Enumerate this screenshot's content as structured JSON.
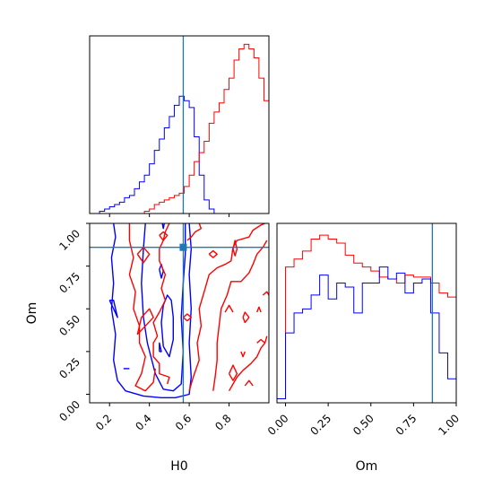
{
  "colors": {
    "series_a": "#ff0000",
    "series_b": "#0000ff",
    "truth": "#1f77b4",
    "axes": "#000000",
    "background": "#ffffff"
  },
  "chart_data": [
    {
      "panel": "H0 marginal histogram",
      "type": "step-histogram",
      "x_range": [
        0.1,
        1.0
      ],
      "bin_width": 0.025,
      "grid": false,
      "y_ticks_shown": false,
      "truth_x": 0.57,
      "series": [
        {
          "color_key": "series_b",
          "x_start": 0.1,
          "counts": [
            0,
            0,
            1,
            2,
            3,
            4,
            5,
            7,
            8,
            11,
            14,
            17,
            22,
            28,
            33,
            38,
            43,
            48,
            52,
            50,
            47,
            34,
            17,
            6,
            2,
            0,
            0,
            0,
            0,
            0,
            0,
            0,
            0,
            0,
            0,
            0
          ]
        },
        {
          "color_key": "series_a",
          "x_start": 0.1,
          "counts": [
            0,
            0,
            0,
            0,
            0,
            0,
            0,
            0,
            0,
            0,
            0,
            1,
            2,
            4,
            5,
            6,
            7,
            8,
            9,
            12,
            17,
            23,
            27,
            32,
            40,
            45,
            49,
            55,
            60,
            68,
            73,
            75,
            73,
            69,
            60,
            50
          ]
        }
      ]
    },
    {
      "panel": "H0 vs Om contour",
      "type": "contour",
      "xlabel": "H0",
      "ylabel": "Om",
      "x_range": [
        0.1,
        1.0
      ],
      "y_range": [
        -0.05,
        1.0
      ],
      "x_ticks": [
        "0.2",
        "0.4",
        "0.6",
        "0.8"
      ],
      "y_ticks": [
        "0.00",
        "0.25",
        "0.50",
        "0.75",
        "1.00"
      ],
      "x_tick_values": [
        0.2,
        0.4,
        0.6,
        0.8
      ],
      "y_tick_values": [
        0.0,
        0.25,
        0.5,
        0.75,
        1.0
      ],
      "truth": {
        "x": 0.57,
        "y": 0.86
      },
      "series": [
        {
          "color_key": "series_b",
          "contours": [
            [
              [
                0.22,
                1.0
              ],
              [
                0.23,
                0.92
              ],
              [
                0.21,
                0.8
              ],
              [
                0.22,
                0.65
              ],
              [
                0.21,
                0.5
              ],
              [
                0.23,
                0.35
              ],
              [
                0.22,
                0.2
              ],
              [
                0.24,
                0.08
              ],
              [
                0.28,
                0.02
              ],
              [
                0.37,
                -0.01
              ],
              [
                0.46,
                -0.02
              ],
              [
                0.53,
                -0.02
              ],
              [
                0.6,
                0.0
              ],
              [
                0.61,
                0.1
              ],
              [
                0.6,
                0.3
              ],
              [
                0.61,
                0.5
              ],
              [
                0.6,
                0.7
              ],
              [
                0.61,
                0.85
              ],
              [
                0.6,
                1.0
              ]
            ],
            [
              [
                0.38,
                1.0
              ],
              [
                0.37,
                0.85
              ],
              [
                0.36,
                0.65
              ],
              [
                0.37,
                0.45
              ],
              [
                0.39,
                0.3
              ],
              [
                0.43,
                0.12
              ],
              [
                0.47,
                0.03
              ],
              [
                0.52,
                0.02
              ],
              [
                0.56,
                0.06
              ],
              [
                0.57,
                0.25
              ],
              [
                0.56,
                0.45
              ],
              [
                0.57,
                0.65
              ],
              [
                0.58,
                0.82
              ],
              [
                0.58,
                1.0
              ]
            ],
            [
              [
                0.47,
                0.28
              ],
              [
                0.46,
                0.42
              ],
              [
                0.47,
                0.52
              ],
              [
                0.49,
                0.58
              ],
              [
                0.51,
                0.55
              ],
              [
                0.52,
                0.45
              ],
              [
                0.52,
                0.32
              ],
              [
                0.5,
                0.22
              ],
              [
                0.47,
                0.28
              ]
            ],
            [
              [
                0.45,
                0.25
              ],
              [
                0.45,
                0.3
              ],
              [
                0.46,
                0.25
              ],
              [
                0.45,
                0.25
              ]
            ],
            [
              [
                0.2,
                0.55
              ],
              [
                0.22,
                0.5
              ],
              [
                0.24,
                0.45
              ],
              [
                0.22,
                0.55
              ],
              [
                0.2,
                0.55
              ]
            ],
            [
              [
                0.45,
                0.73
              ],
              [
                0.46,
                0.68
              ],
              [
                0.47,
                0.72
              ],
              [
                0.46,
                0.76
              ],
              [
                0.45,
                0.73
              ]
            ],
            [
              [
                0.27,
                0.15
              ],
              [
                0.3,
                0.15
              ]
            ],
            [
              [
                0.465,
                1.0
              ],
              [
                0.47,
                0.97
              ],
              [
                0.475,
                1.0
              ]
            ]
          ]
        },
        {
          "color_key": "series_a",
          "contours": [
            [
              [
                0.3,
                1.0
              ],
              [
                0.3,
                0.9
              ],
              [
                0.32,
                0.8
              ],
              [
                0.3,
                0.7
              ],
              [
                0.33,
                0.6
              ],
              [
                0.32,
                0.5
              ],
              [
                0.35,
                0.4
              ],
              [
                0.35,
                0.3
              ],
              [
                0.38,
                0.22
              ],
              [
                0.36,
                0.12
              ],
              [
                0.33,
                0.05
              ],
              [
                0.38,
                0.02
              ],
              [
                0.42,
                0.07
              ],
              [
                0.43,
                0.15
              ]
            ],
            [
              [
                0.5,
                1.0
              ],
              [
                0.48,
                0.95
              ],
              [
                0.47,
                0.9
              ],
              [
                0.45,
                0.85
              ],
              [
                0.45,
                0.78
              ],
              [
                0.48,
                0.7
              ],
              [
                0.46,
                0.62
              ],
              [
                0.48,
                0.55
              ],
              [
                0.45,
                0.48
              ],
              [
                0.42,
                0.42
              ],
              [
                0.43,
                0.38
              ],
              [
                0.44,
                0.34
              ],
              [
                0.42,
                0.3
              ],
              [
                0.42,
                0.22
              ],
              [
                0.45,
                0.18
              ],
              [
                0.45,
                0.12
              ],
              [
                0.5,
                0.1
              ],
              [
                0.49,
                0.06
              ]
            ],
            [
              [
                0.34,
                0.35
              ],
              [
                0.38,
                0.4
              ],
              [
                0.42,
                0.45
              ],
              [
                0.4,
                0.5
              ],
              [
                0.36,
                0.45
              ],
              [
                0.34,
                0.35
              ]
            ],
            [
              [
                0.6,
                0.02
              ],
              [
                0.62,
                0.1
              ],
              [
                0.65,
                0.2
              ],
              [
                0.64,
                0.3
              ],
              [
                0.66,
                0.4
              ],
              [
                0.65,
                0.5
              ],
              [
                0.68,
                0.62
              ],
              [
                0.7,
                0.7
              ],
              [
                0.74,
                0.74
              ],
              [
                0.78,
                0.76
              ],
              [
                0.81,
                0.78
              ],
              [
                0.82,
                0.86
              ],
              [
                0.84,
                0.9
              ],
              [
                0.9,
                0.92
              ],
              [
                0.92,
                0.96
              ],
              [
                0.96,
                0.99
              ],
              [
                0.98,
                1.0
              ]
            ],
            [
              [
                0.72,
                0.02
              ],
              [
                0.73,
                0.1
              ],
              [
                0.74,
                0.2
              ],
              [
                0.74,
                0.3
              ],
              [
                0.75,
                0.4
              ],
              [
                0.76,
                0.5
              ],
              [
                0.79,
                0.58
              ],
              [
                0.81,
                0.66
              ],
              [
                0.86,
                0.66
              ],
              [
                0.9,
                0.71
              ],
              [
                0.92,
                0.76
              ],
              [
                0.94,
                0.82
              ],
              [
                0.97,
                0.86
              ],
              [
                0.99,
                0.9
              ]
            ],
            [
              [
                0.8,
                0.02
              ],
              [
                0.82,
                0.06
              ],
              [
                0.84,
                0.1
              ],
              [
                0.87,
                0.14
              ],
              [
                0.91,
                0.18
              ],
              [
                0.94,
                0.22
              ],
              [
                0.96,
                0.27
              ],
              [
                0.98,
                0.3
              ],
              [
                0.99,
                0.34
              ]
            ],
            [
              [
                0.59,
                0.9
              ],
              [
                0.61,
                0.92
              ],
              [
                0.63,
                0.95
              ],
              [
                0.66,
                0.97
              ],
              [
                0.65,
                1.0
              ]
            ],
            [
              [
                0.34,
                0.82
              ],
              [
                0.37,
                0.77
              ],
              [
                0.4,
                0.82
              ],
              [
                0.37,
                0.86
              ],
              [
                0.34,
                0.82
              ]
            ],
            [
              [
                0.45,
                0.93
              ],
              [
                0.47,
                0.95
              ],
              [
                0.49,
                0.93
              ],
              [
                0.47,
                0.9
              ],
              [
                0.45,
                0.93
              ]
            ],
            [
              [
                0.82,
                0.85
              ],
              [
                0.83,
                0.9
              ],
              [
                0.84,
                0.85
              ],
              [
                0.83,
                0.81
              ],
              [
                0.82,
                0.85
              ]
            ],
            [
              [
                0.8,
                0.12
              ],
              [
                0.82,
                0.08
              ],
              [
                0.84,
                0.12
              ],
              [
                0.82,
                0.17
              ],
              [
                0.8,
                0.12
              ]
            ],
            [
              [
                0.86,
                0.25
              ],
              [
                0.87,
                0.22
              ],
              [
                0.88,
                0.25
              ]
            ],
            [
              [
                0.87,
                0.45
              ],
              [
                0.88,
                0.48
              ],
              [
                0.9,
                0.45
              ],
              [
                0.88,
                0.42
              ],
              [
                0.87,
                0.45
              ]
            ],
            [
              [
                0.94,
                0.48
              ],
              [
                0.95,
                0.51
              ],
              [
                0.96,
                0.48
              ]
            ],
            [
              [
                0.7,
                0.82
              ],
              [
                0.72,
                0.8
              ],
              [
                0.74,
                0.82
              ],
              [
                0.72,
                0.84
              ],
              [
                0.7,
                0.82
              ]
            ],
            [
              [
                0.78,
                0.48
              ],
              [
                0.8,
                0.52
              ],
              [
                0.82,
                0.48
              ]
            ],
            [
              [
                0.57,
                0.45
              ],
              [
                0.59,
                0.47
              ],
              [
                0.61,
                0.45
              ],
              [
                0.59,
                0.43
              ],
              [
                0.57,
                0.45
              ]
            ],
            [
              [
                0.88,
                0.05
              ],
              [
                0.9,
                0.08
              ],
              [
                0.92,
                0.05
              ]
            ],
            [
              [
                0.94,
                0.3
              ],
              [
                0.96,
                0.32
              ],
              [
                0.98,
                0.3
              ]
            ],
            [
              [
                0.97,
                0.58
              ],
              [
                0.99,
                0.6
              ],
              [
                1.0,
                0.58
              ]
            ]
          ]
        }
      ]
    },
    {
      "panel": "Om marginal histogram",
      "type": "step-histogram",
      "xlabel": "Om",
      "x_range": [
        -0.05,
        1.0
      ],
      "x_ticks": [
        "0.00",
        "0.25",
        "0.50",
        "0.75",
        "1.00"
      ],
      "x_tick_values": [
        0.0,
        0.25,
        0.5,
        0.75,
        1.0
      ],
      "bin_width": 0.05,
      "truth_x": 0.86,
      "series": [
        {
          "color_key": "series_a",
          "x_start": -0.05,
          "counts": [
            2,
            68,
            72,
            76,
            82,
            84,
            82,
            80,
            74,
            70,
            68,
            66,
            63,
            62,
            60,
            64,
            63,
            63,
            60,
            55,
            53
          ]
        },
        {
          "color_key": "series_b",
          "x_start": -0.05,
          "counts": [
            2,
            35,
            45,
            47,
            54,
            64,
            52,
            60,
            58,
            45,
            60,
            60,
            68,
            62,
            65,
            55,
            60,
            62,
            45,
            25,
            12
          ]
        }
      ]
    }
  ]
}
